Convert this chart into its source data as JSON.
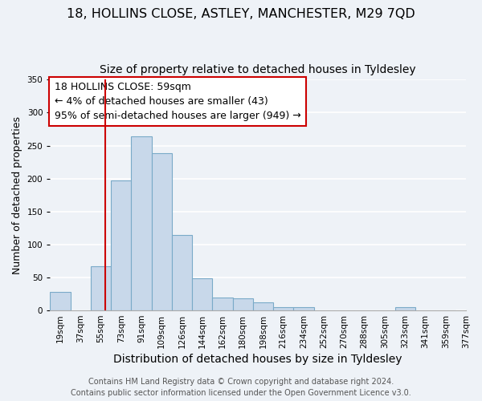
{
  "title": "18, HOLLINS CLOSE, ASTLEY, MANCHESTER, M29 7QD",
  "subtitle": "Size of property relative to detached houses in Tyldesley",
  "xlabel": "Distribution of detached houses by size in Tyldesley",
  "ylabel": "Number of detached properties",
  "bar_color": "#c8d8ea",
  "bar_edge_color": "#7aaac8",
  "bin_labels": [
    "19sqm",
    "37sqm",
    "55sqm",
    "73sqm",
    "91sqm",
    "109sqm",
    "126sqm",
    "144sqm",
    "162sqm",
    "180sqm",
    "198sqm",
    "216sqm",
    "234sqm",
    "252sqm",
    "270sqm",
    "288sqm",
    "305sqm",
    "323sqm",
    "341sqm",
    "359sqm",
    "377sqm"
  ],
  "bar_heights": [
    28,
    0,
    67,
    197,
    264,
    238,
    115,
    49,
    19,
    18,
    12,
    5,
    5,
    0,
    0,
    0,
    0,
    5,
    0,
    0
  ],
  "vline_after_bin": 2,
  "vline_color": "#cc0000",
  "ylim": [
    0,
    350
  ],
  "yticks": [
    0,
    50,
    100,
    150,
    200,
    250,
    300,
    350
  ],
  "annotation_text": "18 HOLLINS CLOSE: 59sqm\n← 4% of detached houses are smaller (43)\n95% of semi-detached houses are larger (949) →",
  "footer_line1": "Contains HM Land Registry data © Crown copyright and database right 2024.",
  "footer_line2": "Contains public sector information licensed under the Open Government Licence v3.0.",
  "background_color": "#eef2f7",
  "grid_color": "#ffffff",
  "title_fontsize": 11.5,
  "subtitle_fontsize": 10,
  "xlabel_fontsize": 10,
  "ylabel_fontsize": 9,
  "tick_fontsize": 7.5,
  "annotation_fontsize": 9,
  "footer_fontsize": 7
}
